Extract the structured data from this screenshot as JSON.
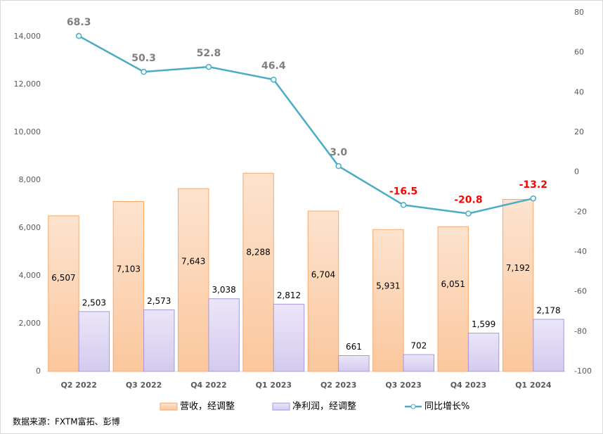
{
  "chart_data": {
    "type": "bar-line",
    "categories": [
      "Q2 2022",
      "Q3 2022",
      "Q4 2022",
      "Q1 2023",
      "Q2 2023",
      "Q3 2023",
      "Q4 2023",
      "Q1 2024"
    ],
    "series": [
      {
        "name": "营收，经调整",
        "type": "bar",
        "color": "#f7a96b",
        "values": [
          6507,
          7103,
          7643,
          8288,
          6704,
          5931,
          6051,
          7192
        ],
        "value_labels": [
          "6,507",
          "7,103",
          "7,643",
          "8,288",
          "6,704",
          "5,931",
          "6,051",
          "7,192"
        ]
      },
      {
        "name": "净利润，经调整",
        "type": "bar",
        "color": "#a898dc",
        "values": [
          2503,
          2573,
          3038,
          2812,
          661,
          702,
          1599,
          2178
        ],
        "value_labels": [
          "2,503",
          "2,573",
          "3,038",
          "2,812",
          "661",
          "702",
          "1,599",
          "2,178"
        ]
      },
      {
        "name": "同比增长%",
        "type": "line",
        "axis": "y2",
        "color": "#4bacc6",
        "values": [
          68.3,
          50.3,
          52.8,
          46.4,
          3.0,
          -16.5,
          -20.8,
          -13.2
        ],
        "value_labels": [
          "68.3",
          "50.3",
          "52.8",
          "46.4",
          "3.0",
          "-16.5",
          "-20.8",
          "-13.2"
        ]
      }
    ],
    "ylim": [
      0,
      15000
    ],
    "yticks": [
      0,
      {
        "value": 2000,
        "label": "2,000"
      },
      {
        "value": 4000,
        "label": "4,000"
      },
      {
        "value": 6000,
        "label": "6,000"
      },
      {
        "value": 8000,
        "label": "8,000"
      },
      {
        "value": 10000,
        "label": "10,000"
      },
      {
        "value": 12000,
        "label": "12,000"
      },
      {
        "value": 14000,
        "label": "14,000"
      }
    ],
    "y2lim": [
      -100,
      80
    ],
    "y2ticks": [
      -100,
      -80,
      -60,
      -40,
      -20,
      0,
      20,
      40,
      60,
      80
    ],
    "positive_label_color": "#7f7f7f",
    "negative_label_color": "#ff0000",
    "legend": "bottom",
    "source": "数据来源：FXTM富拓、彭博"
  }
}
